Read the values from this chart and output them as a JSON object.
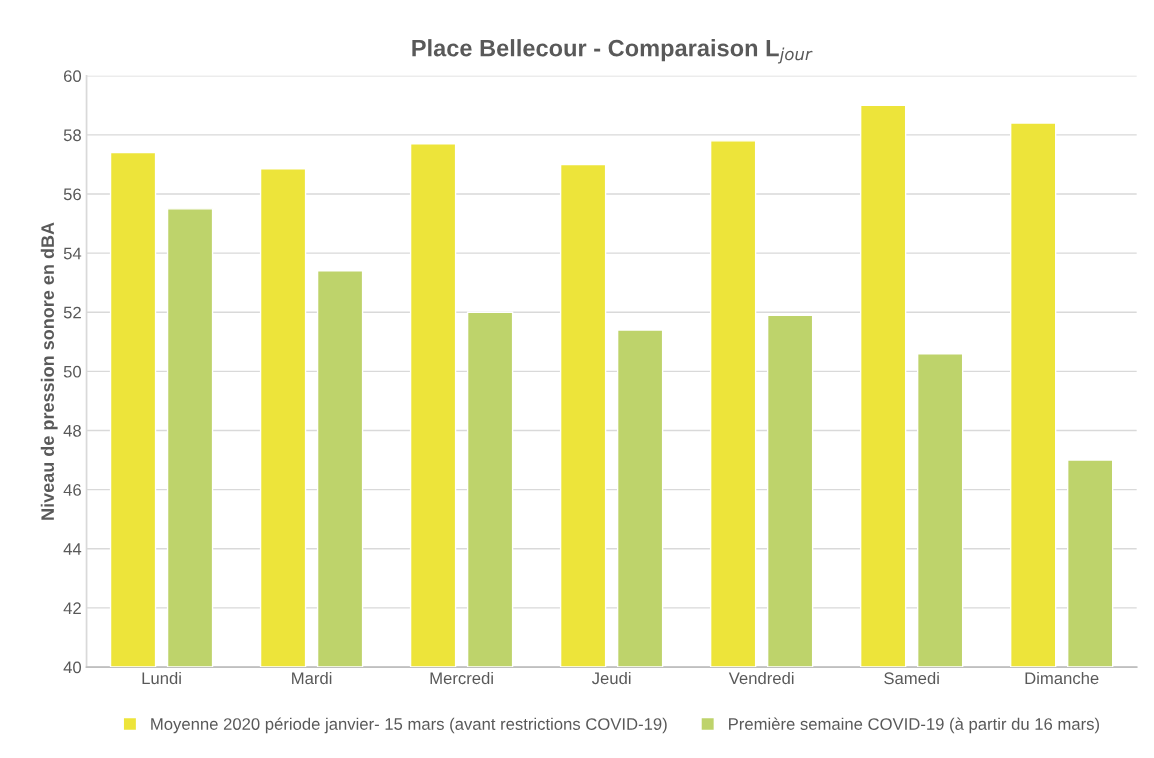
{
  "chart_data": {
    "type": "bar",
    "title": "Place Bellecour - Comparaison L$_{jour}$",
    "ylabel": "Niveau de pression sonore en dBA",
    "categories": [
      "Lundi",
      "Mardi",
      "Mercredi",
      "Jeudi",
      "Vendredi",
      "Samedi",
      "Dimanche"
    ],
    "series": [
      {
        "name": "Moyenne 2020 période janvier- 15 mars (avant restrictions COVID-19)",
        "color": "#ede43a",
        "values": [
          57.4,
          56.85,
          57.7,
          57.0,
          57.8,
          59.0,
          58.4
        ]
      },
      {
        "name": "Première semaine COVID-19 (à partir du 16 mars)",
        "color": "#bed36b",
        "values": [
          55.5,
          53.4,
          52.0,
          51.4,
          51.9,
          50.6,
          47.0
        ]
      }
    ],
    "ylim": [
      40,
      60
    ],
    "yticks": [
      40,
      42,
      44,
      46,
      48,
      50,
      52,
      54,
      56,
      58,
      60
    ],
    "grid": "y",
    "legend": "bottom"
  }
}
